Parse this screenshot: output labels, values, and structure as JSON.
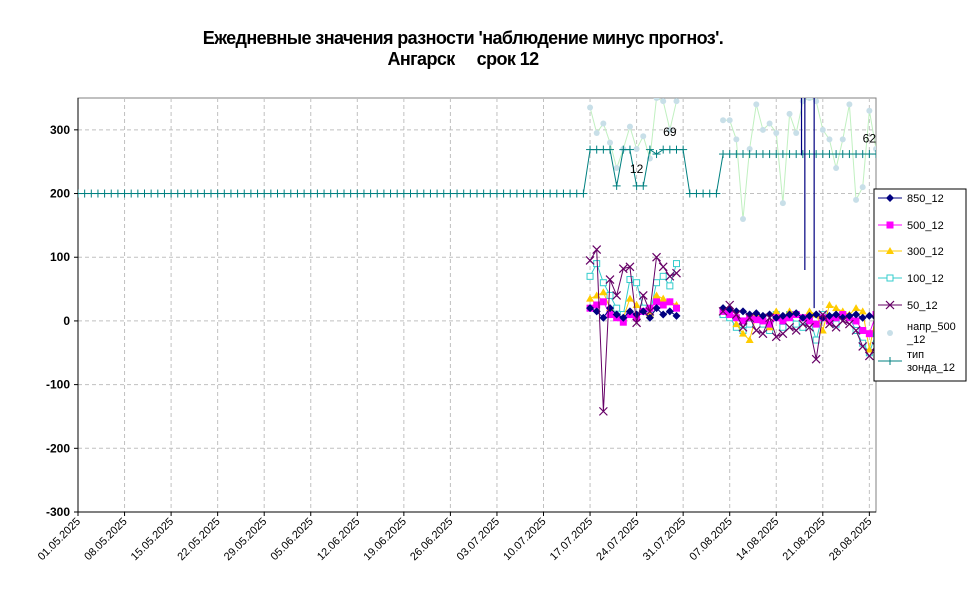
{
  "chart_data": {
    "type": "line",
    "title": "Ежедневные значения разности 'наблюдение минус прогноз'.",
    "subtitle": "Ангарск     срок 12",
    "ylim": [
      -300,
      350
    ],
    "yticks": [
      -300,
      -200,
      -100,
      0,
      100,
      200,
      300
    ],
    "xlim": [
      0,
      120
    ],
    "grid": true,
    "legend_position": "right",
    "x_tick_labels": [
      "01.05.2025",
      "08.05.2025",
      "15.05.2025",
      "22.05.2025",
      "29.05.2025",
      "05.06.2025",
      "12.06.2025",
      "19.06.2025",
      "26.06.2025",
      "03.07.2025",
      "10.07.2025",
      "17.07.2025",
      "24.07.2025",
      "31.07.2025",
      "07.08.2025",
      "14.08.2025",
      "21.08.2025",
      "28.08.2025"
    ],
    "annotations": [
      {
        "text": "12",
        "x": 84,
        "y": 232
      },
      {
        "text": "69",
        "x": 89,
        "y": 290
      },
      {
        "text": "62",
        "x": 119,
        "y": 280
      }
    ],
    "series": [
      {
        "name": "850_12",
        "color": "#000080",
        "marker": "diamond",
        "x": [
          77,
          78,
          79,
          80,
          81,
          82,
          83,
          84,
          85,
          86,
          87,
          88,
          89,
          90,
          97,
          98,
          99,
          100,
          101,
          102,
          103,
          104,
          105,
          106,
          107,
          108,
          109,
          110,
          111,
          112,
          113,
          114,
          115,
          116,
          117,
          118,
          119,
          120
        ],
        "y": [
          20,
          15,
          5,
          20,
          10,
          5,
          15,
          10,
          15,
          5,
          20,
          10,
          15,
          8,
          20,
          18,
          15,
          15,
          10,
          12,
          8,
          10,
          5,
          8,
          10,
          12,
          5,
          8,
          10,
          5,
          8,
          10,
          5,
          8,
          10,
          5,
          8,
          5
        ]
      },
      {
        "name": "500_12",
        "color": "#ff00ff",
        "marker": "square",
        "x": [
          77,
          78,
          79,
          80,
          81,
          82,
          83,
          84,
          85,
          86,
          87,
          88,
          89,
          90,
          97,
          98,
          99,
          100,
          101,
          102,
          103,
          104,
          105,
          106,
          107,
          108,
          109,
          110,
          111,
          112,
          113,
          114,
          115,
          116,
          117,
          118,
          119,
          120
        ],
        "y": [
          20,
          25,
          30,
          10,
          5,
          -2,
          10,
          5,
          15,
          20,
          30,
          25,
          30,
          20,
          15,
          10,
          5,
          0,
          5,
          2,
          0,
          -5,
          5,
          0,
          5,
          10,
          5,
          0,
          -5,
          5,
          0,
          5,
          10,
          5,
          0,
          -15,
          -20,
          10
        ]
      },
      {
        "name": "300_12",
        "color": "#ffcc00",
        "marker": "triangle",
        "x": [
          77,
          78,
          79,
          80,
          81,
          82,
          83,
          84,
          85,
          86,
          87,
          88,
          89,
          90,
          97,
          98,
          99,
          100,
          101,
          102,
          103,
          104,
          105,
          106,
          107,
          108,
          109,
          110,
          111,
          112,
          113,
          114,
          115,
          116,
          117,
          118,
          119,
          120
        ],
        "y": [
          35,
          40,
          45,
          20,
          10,
          5,
          35,
          25,
          15,
          10,
          40,
          35,
          30,
          25,
          15,
          20,
          -5,
          -20,
          -30,
          10,
          5,
          -10,
          15,
          0,
          15,
          10,
          5,
          15,
          10,
          -15,
          25,
          20,
          15,
          10,
          20,
          15,
          -45,
          10
        ]
      },
      {
        "name": "100_12",
        "color": "#33cccc",
        "marker": "square-open",
        "x": [
          77,
          78,
          79,
          80,
          81,
          82,
          83,
          84,
          85,
          86,
          87,
          88,
          89,
          90,
          97,
          98,
          99,
          100,
          101,
          102,
          103,
          104,
          105,
          106,
          107,
          108,
          109,
          110,
          111,
          112,
          113,
          114,
          115,
          116,
          117,
          118,
          119,
          120
        ],
        "y": [
          70,
          90,
          60,
          40,
          20,
          10,
          65,
          60,
          20,
          10,
          60,
          70,
          55,
          90,
          10,
          5,
          -10,
          -15,
          -5,
          5,
          -5,
          -15,
          10,
          -10,
          10,
          -5,
          -10,
          5,
          -30,
          10,
          5,
          -5,
          10,
          5,
          -15,
          -35,
          -50,
          -20
        ]
      },
      {
        "name": "50_12",
        "color": "#660066",
        "marker": "x",
        "x": [
          77,
          78,
          79,
          80,
          81,
          82,
          83,
          84,
          85,
          86,
          87,
          88,
          89,
          90,
          97,
          98,
          99,
          100,
          101,
          102,
          103,
          104,
          105,
          106,
          107,
          108,
          109,
          110,
          111,
          112,
          113,
          114,
          115,
          116,
          117,
          118,
          119,
          120
        ],
        "y": [
          95,
          112,
          -142,
          65,
          40,
          82,
          85,
          -3,
          40,
          15,
          100,
          85,
          70,
          75,
          15,
          25,
          10,
          -10,
          5,
          -15,
          -20,
          5,
          -25,
          -20,
          -10,
          -15,
          -5,
          -10,
          -60,
          10,
          -5,
          -10,
          0,
          -5,
          -15,
          -40,
          -55,
          -40
        ]
      },
      {
        "name": "напр_500_12",
        "color": "#c0f0c0",
        "marker_color": "#c8dfe8",
        "marker": "dot",
        "x": [
          77,
          78,
          79,
          80,
          81,
          82,
          83,
          84,
          85,
          86,
          87,
          88,
          89,
          90,
          97,
          98,
          99,
          100,
          101,
          102,
          103,
          104,
          105,
          106,
          107,
          108,
          109,
          110,
          111,
          112,
          113,
          114,
          115,
          116,
          117,
          118,
          119,
          120
        ],
        "y": [
          335,
          295,
          310,
          280,
          240,
          270,
          305,
          270,
          290,
          255,
          350,
          345,
          300,
          345,
          315,
          315,
          285,
          160,
          270,
          340,
          300,
          310,
          295,
          185,
          325,
          295,
          345,
          350,
          345,
          300,
          285,
          240,
          285,
          340,
          190,
          210,
          330,
          270
        ]
      },
      {
        "name": "тип зонда_12",
        "color": "#008080",
        "marker": "plus",
        "x": [
          0,
          1,
          2,
          3,
          4,
          5,
          6,
          7,
          8,
          9,
          10,
          11,
          12,
          13,
          14,
          15,
          16,
          17,
          18,
          19,
          20,
          21,
          22,
          23,
          24,
          25,
          26,
          27,
          28,
          29,
          30,
          31,
          32,
          33,
          34,
          35,
          36,
          37,
          38,
          39,
          40,
          41,
          42,
          43,
          44,
          45,
          46,
          47,
          48,
          49,
          50,
          51,
          52,
          53,
          54,
          55,
          56,
          57,
          58,
          59,
          60,
          61,
          62,
          63,
          64,
          65,
          66,
          67,
          68,
          69,
          70,
          71,
          72,
          73,
          74,
          75,
          76,
          77,
          78,
          79,
          80,
          81,
          82,
          83,
          84,
          85,
          86,
          87,
          88,
          89,
          90,
          91,
          92,
          93,
          94,
          95,
          96,
          97,
          98,
          99,
          100,
          101,
          102,
          103,
          104,
          105,
          106,
          107,
          108,
          109,
          110,
          111,
          112,
          113,
          114,
          115,
          116,
          117,
          118,
          119,
          120
        ],
        "y": [
          200,
          200,
          200,
          200,
          200,
          200,
          200,
          200,
          200,
          200,
          200,
          200,
          200,
          200,
          200,
          200,
          200,
          200,
          200,
          200,
          200,
          200,
          200,
          200,
          200,
          200,
          200,
          200,
          200,
          200,
          200,
          200,
          200,
          200,
          200,
          200,
          200,
          200,
          200,
          200,
          200,
          200,
          200,
          200,
          200,
          200,
          200,
          200,
          200,
          200,
          200,
          200,
          200,
          200,
          200,
          200,
          200,
          200,
          200,
          200,
          200,
          200,
          200,
          200,
          200,
          200,
          200,
          200,
          200,
          200,
          200,
          200,
          200,
          200,
          200,
          200,
          200,
          269,
          269,
          269,
          269,
          212,
          269,
          269,
          212,
          212,
          269,
          262,
          269,
          269,
          269,
          269,
          200,
          200,
          200,
          200,
          200,
          262,
          262,
          262,
          262,
          262,
          262,
          262,
          262,
          262,
          262,
          262,
          262,
          262,
          262,
          262,
          262,
          262,
          262,
          262,
          262,
          262,
          262,
          262,
          262
        ]
      }
    ],
    "spikes": [
      {
        "x": 108.8,
        "y_from": 260,
        "y_to": 350,
        "color": "#000080"
      },
      {
        "x": 109.3,
        "y_from": 80,
        "y_to": 350,
        "color": "#000080"
      },
      {
        "x": 110.7,
        "y_from": 350,
        "y_to": 20,
        "color": "#000080"
      }
    ]
  }
}
